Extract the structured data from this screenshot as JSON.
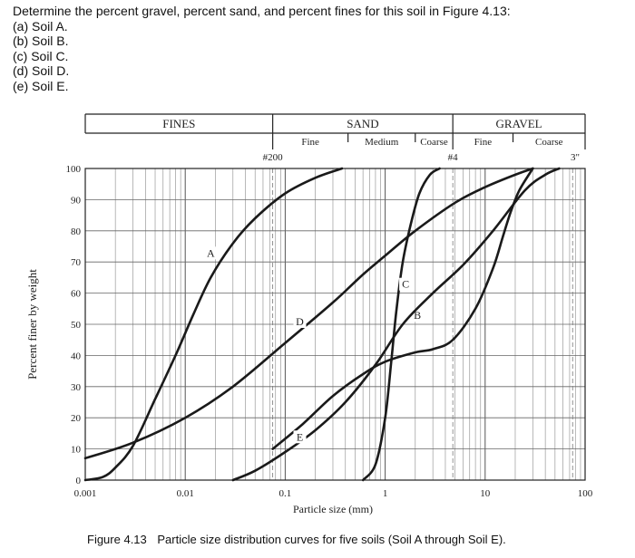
{
  "question": {
    "prompt": "Determine the percent gravel, percent sand, and percent fines for this soil in Figure 4.13:",
    "parts": [
      "(a) Soil A.",
      "(b) Soil B.",
      "(c) Soil C.",
      "(d) Soil D.",
      "(e) Soil E."
    ]
  },
  "caption": {
    "number": "Figure 4.13",
    "text": "Particle size distribution curves for five soils (Soil A through Soil E)."
  },
  "chart_data": {
    "type": "line",
    "xscale": "log",
    "xlim": [
      0.001,
      100
    ],
    "ylim": [
      0,
      100
    ],
    "xlabel": "Particle size (mm)",
    "ylabel": "Percent finer by weight",
    "xticks": [
      "0.001",
      "0.01",
      "0.1",
      "1",
      "10",
      "100"
    ],
    "yticks": [
      "0",
      "10",
      "20",
      "30",
      "40",
      "50",
      "60",
      "70",
      "80",
      "90",
      "100"
    ],
    "grid": true,
    "header": {
      "fines": "FINES",
      "sand": "SAND",
      "gravel": "GRAVEL",
      "sand_fine": "Fine",
      "sand_medium": "Medium",
      "sand_coarse": "Coarse",
      "gravel_fine": "Fine",
      "gravel_coarse": "Coarse"
    },
    "sieve_marks": [
      {
        "label": "#200",
        "size": 0.075
      },
      {
        "label": "#4",
        "size": 4.75
      },
      {
        "label": "3\"",
        "size": 75
      }
    ],
    "series": [
      {
        "name": "A",
        "label_at": [
          0.018,
          72
        ],
        "points": [
          [
            0.001,
            0
          ],
          [
            0.0015,
            1
          ],
          [
            0.002,
            4
          ],
          [
            0.003,
            11
          ],
          [
            0.005,
            26
          ],
          [
            0.008,
            40
          ],
          [
            0.012,
            53
          ],
          [
            0.018,
            65
          ],
          [
            0.03,
            76
          ],
          [
            0.05,
            84
          ],
          [
            0.1,
            92
          ],
          [
            0.2,
            97
          ],
          [
            0.37,
            100
          ]
        ]
      },
      {
        "name": "B",
        "label_at": [
          2.1,
          52
        ],
        "points": [
          [
            0.075,
            10
          ],
          [
            0.15,
            18
          ],
          [
            0.3,
            27
          ],
          [
            0.6,
            34
          ],
          [
            1.0,
            38
          ],
          [
            2.0,
            41
          ],
          [
            3.0,
            42
          ],
          [
            4.75,
            45
          ],
          [
            8,
            55
          ],
          [
            12,
            68
          ],
          [
            15,
            78
          ],
          [
            18,
            86
          ],
          [
            22,
            93
          ],
          [
            30,
            100
          ]
        ]
      },
      {
        "name": "C",
        "label_at": [
          1.6,
          62
        ],
        "points": [
          [
            0.6,
            0
          ],
          [
            0.8,
            5
          ],
          [
            1.0,
            20
          ],
          [
            1.15,
            38
          ],
          [
            1.3,
            55
          ],
          [
            1.5,
            70
          ],
          [
            1.8,
            82
          ],
          [
            2.2,
            92
          ],
          [
            2.8,
            98
          ],
          [
            3.5,
            100
          ]
        ]
      },
      {
        "name": "D",
        "label_at": [
          0.14,
          50
        ],
        "points": [
          [
            0.001,
            7
          ],
          [
            0.003,
            12
          ],
          [
            0.01,
            20
          ],
          [
            0.03,
            30
          ],
          [
            0.1,
            44
          ],
          [
            0.3,
            57
          ],
          [
            0.6,
            66
          ],
          [
            1.0,
            72
          ],
          [
            2.0,
            80
          ],
          [
            5.0,
            89
          ],
          [
            10,
            94
          ],
          [
            20,
            98
          ],
          [
            30,
            100
          ]
        ]
      },
      {
        "name": "E",
        "label_at": [
          0.14,
          13
        ],
        "points": [
          [
            0.03,
            0
          ],
          [
            0.05,
            3
          ],
          [
            0.1,
            9
          ],
          [
            0.2,
            16
          ],
          [
            0.4,
            25
          ],
          [
            0.8,
            37
          ],
          [
            1.5,
            50
          ],
          [
            3.0,
            60
          ],
          [
            6.0,
            69
          ],
          [
            12,
            80
          ],
          [
            25,
            93
          ],
          [
            40,
            98
          ],
          [
            55,
            100
          ]
        ]
      }
    ]
  }
}
